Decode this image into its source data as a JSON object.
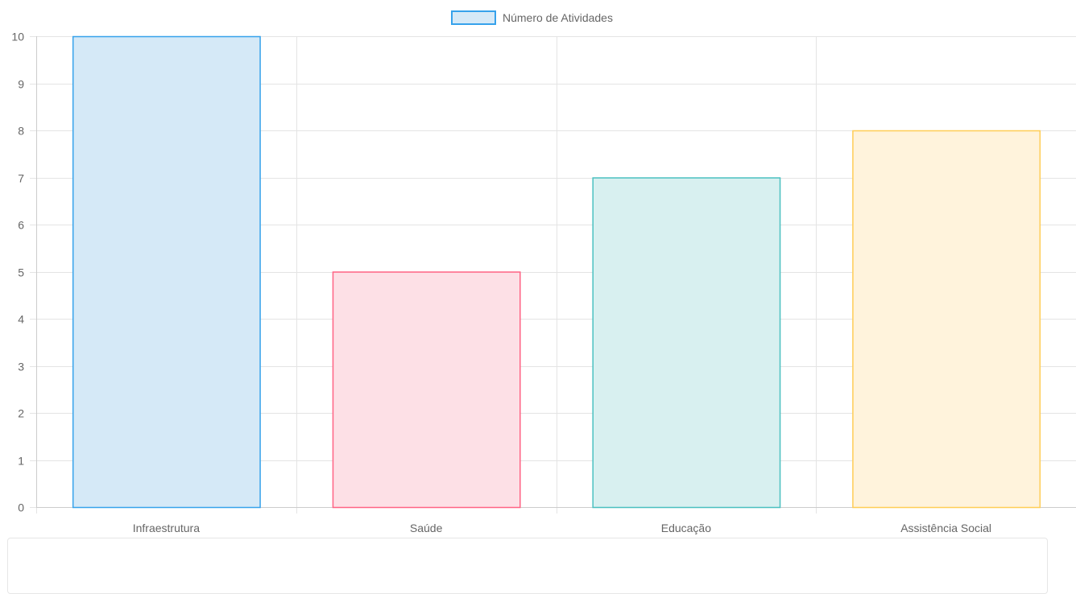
{
  "chart_data": {
    "type": "bar",
    "categories": [
      "Infraestrutura",
      "Saúde",
      "Educação",
      "Assistência Social"
    ],
    "series": [
      {
        "name": "Número de Atividades",
        "values": [
          10,
          5,
          7,
          8
        ]
      }
    ],
    "bar_colors": [
      {
        "fill": "#d5e9f7",
        "border": "#36a2eb"
      },
      {
        "fill": "#fde0e6",
        "border": "#ff6384"
      },
      {
        "fill": "#d8f0f0",
        "border": "#4bc0c0"
      },
      {
        "fill": "#fff3dc",
        "border": "#ffcd56"
      }
    ],
    "legend": {
      "placement": "top",
      "swatch_fill": "#d5e9f7",
      "swatch_border": "#36a2eb"
    },
    "ylim": [
      0,
      10
    ],
    "yticks": [
      0,
      1,
      2,
      3,
      4,
      5,
      6,
      7,
      8,
      9,
      10
    ],
    "grid": true,
    "title": "",
    "xlabel": "",
    "ylabel": ""
  }
}
